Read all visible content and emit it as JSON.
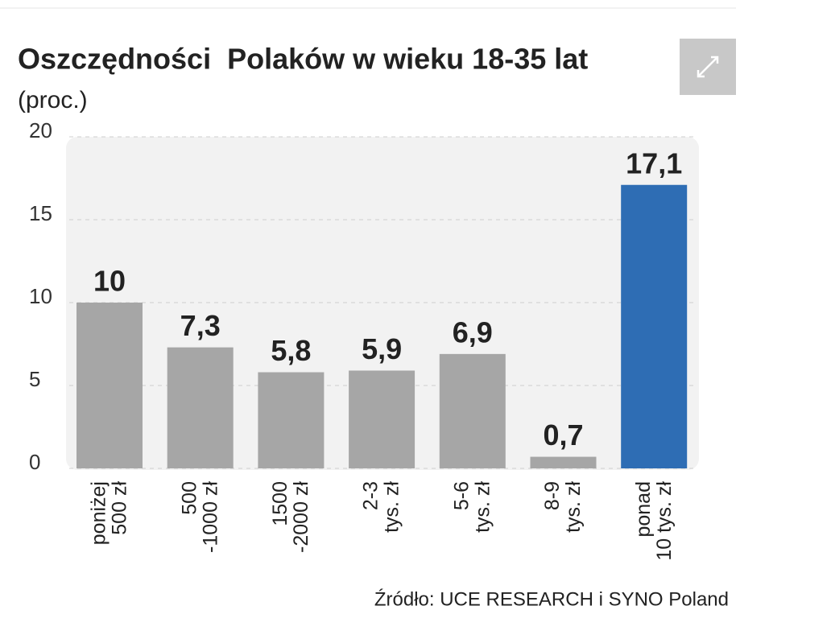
{
  "chart_data": {
    "type": "bar",
    "title": "Oszczędności  Polaków w wieku 18-35 lat",
    "subtitle": "(proc.)",
    "source": "Źródło: UCE RESEARCH i SYNO Poland",
    "categories": [
      [
        "poniżej",
        "500 zł"
      ],
      [
        "500",
        "-1000 zł"
      ],
      [
        "1500",
        "-2000 zł"
      ],
      [
        "2-3",
        "tys. zł"
      ],
      [
        "5-6",
        "tys. zł"
      ],
      [
        "8-9",
        "tys. zł"
      ],
      [
        "ponad",
        "10 tys. zł"
      ]
    ],
    "values": [
      10,
      7.3,
      5.8,
      5.9,
      6.9,
      0.7,
      17.1
    ],
    "value_labels": [
      "10",
      "7,3",
      "5,8",
      "5,9",
      "6,9",
      "0,7",
      "17,1"
    ],
    "colors": [
      "#a6a6a6",
      "#a6a6a6",
      "#a6a6a6",
      "#a6a6a6",
      "#a6a6a6",
      "#a6a6a6",
      "#2e6db4"
    ],
    "ylim": [
      0,
      20
    ],
    "yticks": [
      0,
      5,
      10,
      15,
      20
    ],
    "grid": true
  }
}
